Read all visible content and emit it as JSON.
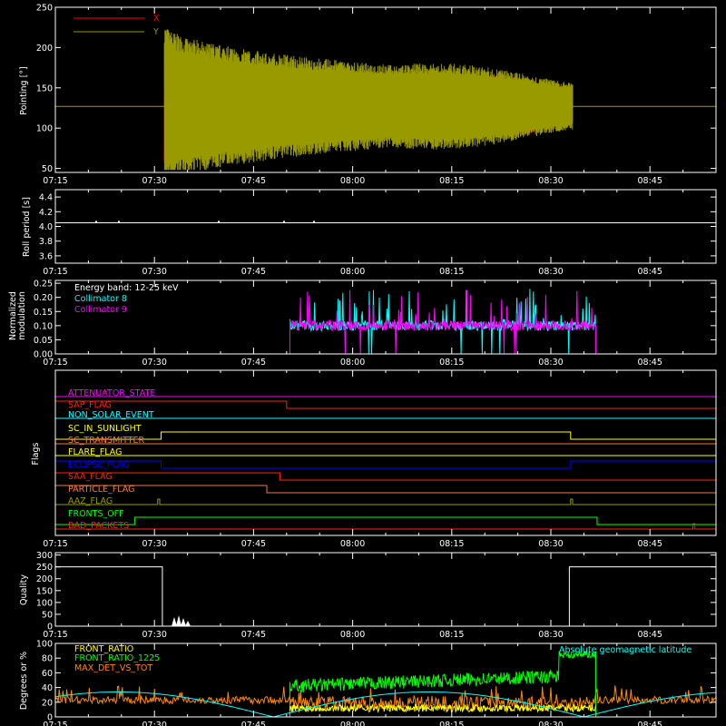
{
  "time_ticks": [
    "07:15",
    "07:30",
    "07:45",
    "08:00",
    "08:15",
    "08:30",
    "08:45"
  ],
  "chart_data": [
    {
      "type": "line",
      "ylabel": "Pointing [°]",
      "ylim": [
        45,
        250
      ],
      "yticks": [
        50,
        100,
        150,
        200,
        250
      ],
      "series": [
        {
          "name": "X",
          "color": "#ff0000"
        },
        {
          "name": "Y",
          "color": "#999900"
        }
      ],
      "baseline": 127
    },
    {
      "type": "line",
      "ylabel": "Roll period [s]",
      "ylim": [
        3.5,
        4.5
      ],
      "yticks": [
        "3.6",
        "3.8",
        "4.0",
        "4.2",
        "4.4"
      ],
      "value": 4.05
    },
    {
      "type": "line",
      "ylabel": "Normalized modulation",
      "ylabel_lines": [
        "Normalized",
        "modulation"
      ],
      "ylim": [
        0,
        0.26
      ],
      "yticks": [
        "0.00",
        "0.05",
        "0.10",
        "0.15",
        "0.20",
        "0.25"
      ],
      "annotation": "Energy band: 12-25 keV",
      "series": [
        {
          "name": "Collimator 8",
          "color": "#00ffff"
        },
        {
          "name": "Collimator 9",
          "color": "#ff00ff"
        }
      ]
    },
    {
      "type": "line",
      "ylabel": "Flags",
      "flags": [
        {
          "name": "ATTENUATOR_STATE",
          "color": "#ff00ff"
        },
        {
          "name": "SAP_FLAG",
          "color": "#ff2200"
        },
        {
          "name": "NON_SOLAR_EVENT",
          "color": "#00ffff"
        },
        {
          "name": "SC_IN_SUNLIGHT",
          "color": "#ffff00"
        },
        {
          "name": "SC_TRANSMITTER",
          "color": "#ff7733"
        },
        {
          "name": "FLARE_FLAG",
          "color": "#ffff00"
        },
        {
          "name": "ECLIPSE_FLAG",
          "color": "#0000ff"
        },
        {
          "name": "SAA_FLAG",
          "color": "#ff2200"
        },
        {
          "name": "PARTICLE_FLAG",
          "color": "#ff7733"
        },
        {
          "name": "AAZ_FLAG",
          "color": "#999900"
        },
        {
          "name": "FRONTS_OFF",
          "color": "#00ff00"
        },
        {
          "name": "BAD_PACKETS",
          "color": "#ff2200"
        }
      ]
    },
    {
      "type": "line",
      "ylabel": "Quality",
      "ylim": [
        0,
        310
      ],
      "yticks": [
        0,
        50,
        100,
        150,
        200,
        250,
        300
      ]
    },
    {
      "type": "line",
      "ylabel": "Degrees or %",
      "ylim": [
        0,
        100
      ],
      "yticks": [
        0,
        20,
        40,
        60,
        80,
        100
      ],
      "annotation": "Absolute geomagnetic latitude",
      "annotation_color": "#00ffff",
      "series": [
        {
          "name": "FRONT_RATIO",
          "color": "#ffff00"
        },
        {
          "name": "FRONT_RATIO_1225",
          "color": "#00ff00"
        },
        {
          "name": "MAX_DET_VS_TOT",
          "color": "#ff8800"
        }
      ]
    }
  ]
}
